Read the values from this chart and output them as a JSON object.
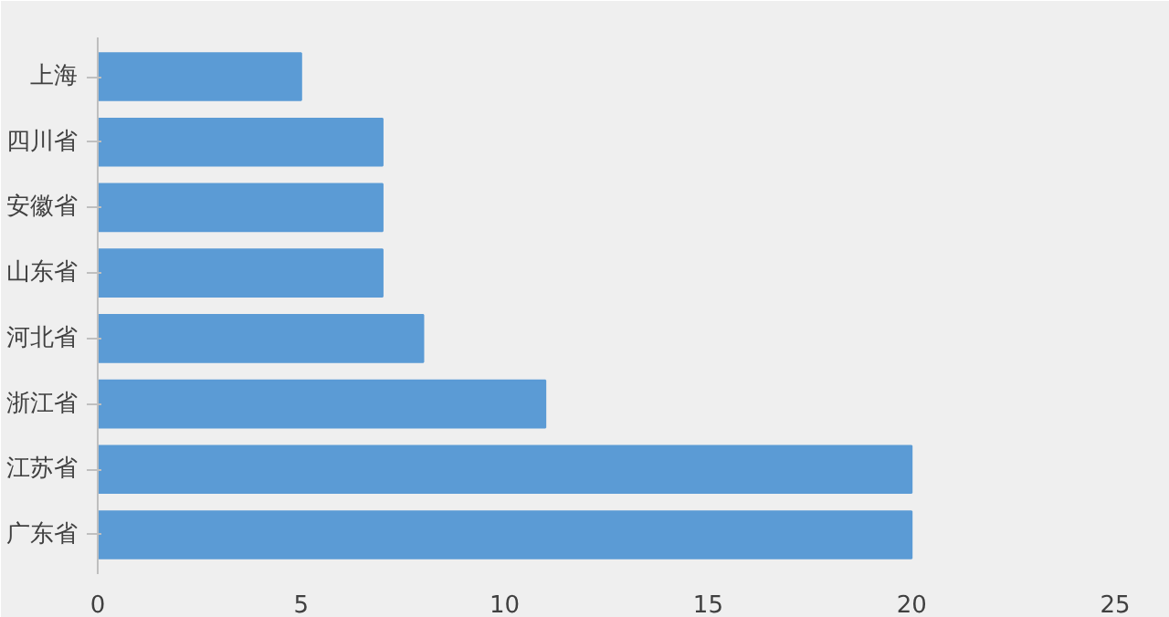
{
  "chart_data": {
    "type": "bar",
    "orientation": "horizontal",
    "categories": [
      "上海",
      "四川省",
      "安徽省",
      "山东省",
      "河北省",
      "浙江省",
      "江苏省",
      "广东省"
    ],
    "values": [
      5,
      7,
      7,
      7,
      8,
      11,
      20,
      20
    ],
    "color": "#5b9bd5",
    "xlim": [
      0,
      25
    ],
    "xticks": [
      0,
      5,
      10,
      15,
      20,
      25
    ],
    "grid": false
  }
}
